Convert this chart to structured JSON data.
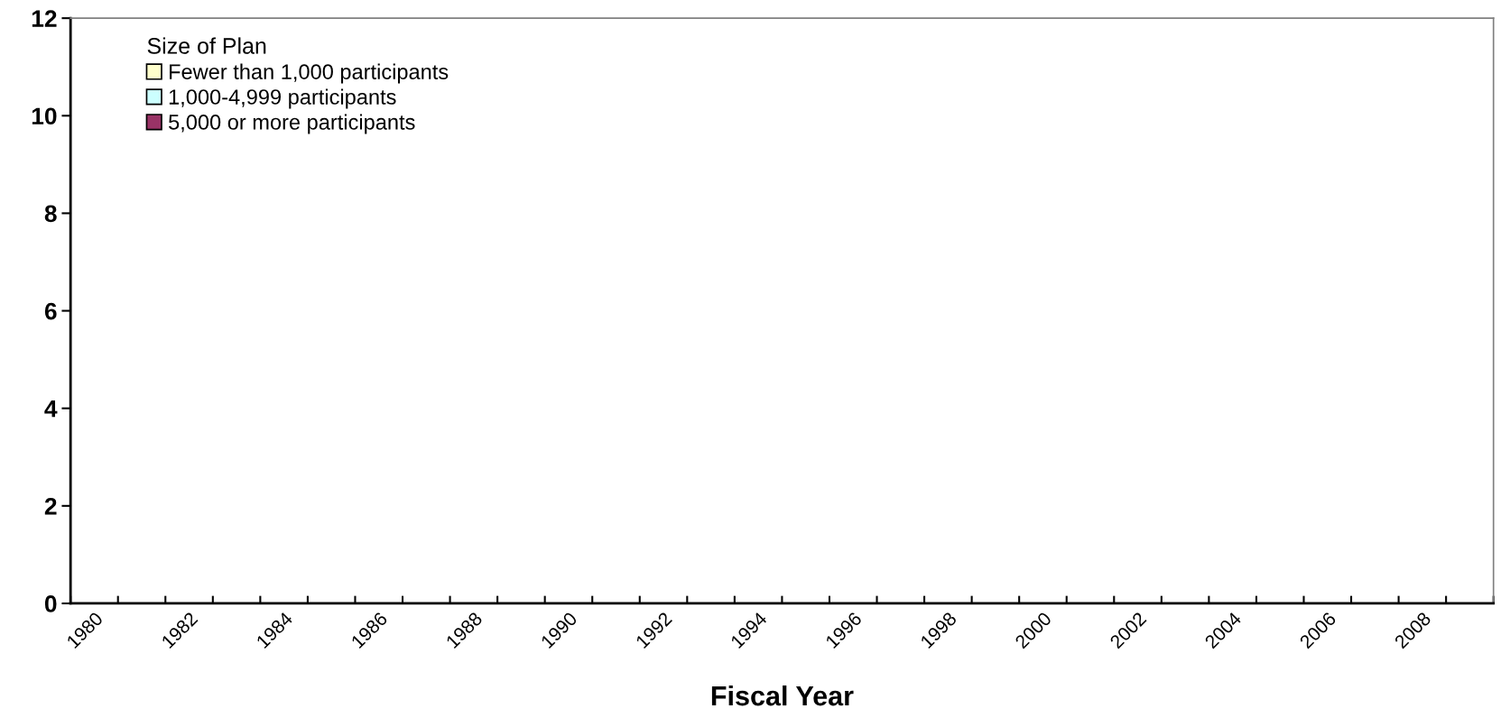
{
  "chart_data": {
    "type": "bar",
    "xlabel": "Fiscal Year",
    "legend_title": "Size of Plan",
    "legend": "top left",
    "categories": [
      "1980",
      null,
      "1982",
      null,
      "1984",
      null,
      "1986",
      null,
      "1988",
      null,
      "1990",
      null,
      "1992",
      null,
      "1994",
      null,
      "1996",
      null,
      "1998",
      null,
      "2000",
      null,
      "2002",
      null,
      "2004",
      null,
      "2006",
      null,
      "2008",
      null
    ],
    "series": [
      {
        "name": "Fewer than 1,000 participants",
        "color": "#ffffcc",
        "values": [
          null,
          null,
          null,
          null,
          null,
          null,
          null,
          null,
          null,
          null,
          null,
          null,
          null,
          null,
          null,
          null,
          null,
          null,
          null,
          null,
          null,
          null,
          null,
          null,
          null,
          null,
          null,
          null,
          null,
          null
        ]
      },
      {
        "name": "1,000-4,999 participants",
        "color": "#ccffff",
        "values": [
          null,
          null,
          null,
          null,
          null,
          null,
          null,
          null,
          null,
          null,
          null,
          null,
          null,
          null,
          null,
          null,
          null,
          null,
          null,
          null,
          null,
          null,
          null,
          null,
          null,
          null,
          null,
          null,
          null,
          null
        ]
      },
      {
        "name": "5,000 or more participants",
        "color": "#993366",
        "values": [
          null,
          null,
          null,
          null,
          null,
          null,
          null,
          null,
          null,
          null,
          null,
          null,
          null,
          null,
          null,
          null,
          null,
          null,
          null,
          null,
          null,
          null,
          null,
          null,
          null,
          null,
          null,
          null,
          null,
          null
        ]
      }
    ],
    "ylim": [
      0,
      12
    ],
    "yticks": [
      0,
      2,
      4,
      6,
      8,
      10,
      12
    ],
    "grid": false
  }
}
